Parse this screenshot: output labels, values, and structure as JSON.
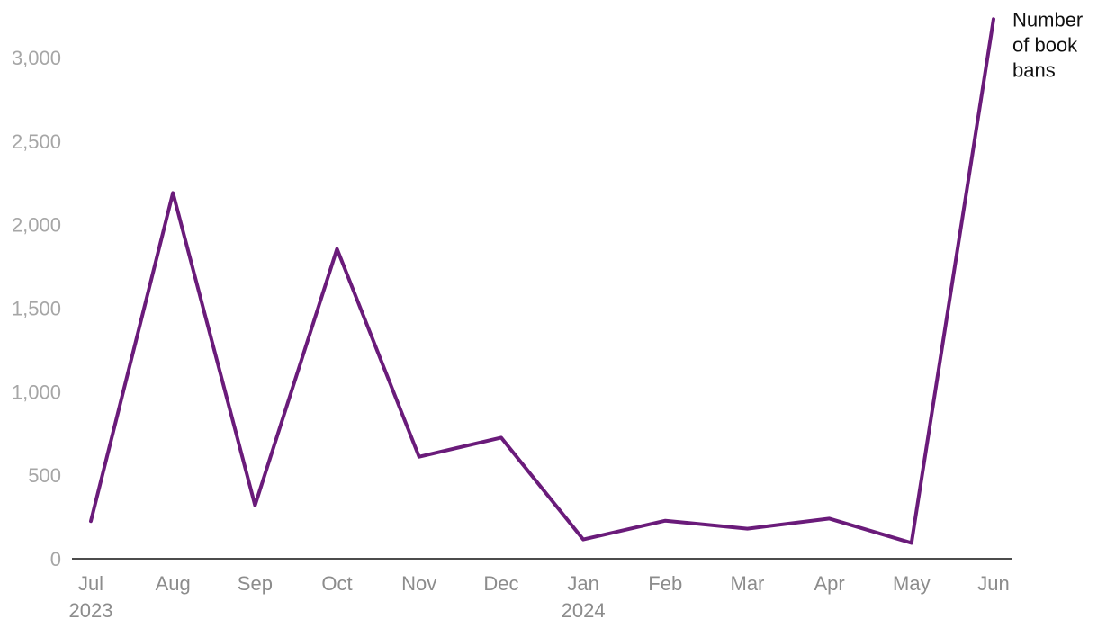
{
  "chart_data": {
    "type": "line",
    "title": "",
    "xlabel": "",
    "ylabel": "",
    "categories": [
      "Jul",
      "Aug",
      "Sep",
      "Oct",
      "Nov",
      "Dec",
      "Jan",
      "Feb",
      "Mar",
      "Apr",
      "May",
      "Jun"
    ],
    "year_labels": [
      {
        "category_index": 0,
        "label": "2023"
      },
      {
        "category_index": 6,
        "label": "2024"
      }
    ],
    "y_ticks": [
      0,
      500,
      1000,
      1500,
      2000,
      2500,
      3000
    ],
    "y_tick_labels": [
      "0",
      "500",
      "1,000",
      "1,500",
      "2,000",
      "2,500",
      "3,000"
    ],
    "ylim": [
      0,
      3250
    ],
    "grid": false,
    "series": [
      {
        "name": "Number of book bans",
        "label_lines": [
          "Number",
          "of book",
          "bans"
        ],
        "color": "#6a1b7a",
        "values": [
          225,
          2190,
          320,
          1855,
          610,
          725,
          115,
          228,
          180,
          240,
          95,
          3230
        ]
      }
    ]
  }
}
